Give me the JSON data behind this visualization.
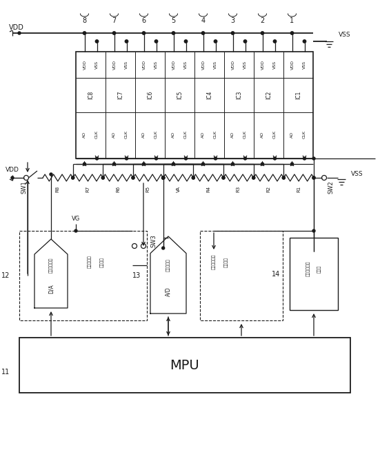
{
  "bg": "#ffffff",
  "lc": "#1a1a1a",
  "fig_w": 5.51,
  "fig_h": 6.85,
  "dpi": 100,
  "ic_labels": [
    "IC8",
    "IC7",
    "IC6",
    "IC5",
    "IC4",
    "IC3",
    "IC2",
    "IC1"
  ],
  "res_labels": [
    "R8",
    "R7",
    "R6",
    "R5",
    "VA",
    "R4",
    "R3",
    "R2",
    "R1"
  ],
  "mpu": "MPU",
  "vdd": "VDD",
  "vss": "VSS",
  "vg": "VG",
  "sw1": "SW1",
  "sw2": "SW2",
  "sw3": "SW3",
  "n11": "11",
  "n12": "12",
  "n13": "13",
  "n14": "14",
  "da_t1": "ゲイン設定用",
  "da_t2": "D/A",
  "gain_t1": "ゲイン設定",
  "gain_t2": "制御機器",
  "ad_t1": "信号計測用",
  "ad_t2": "A/D",
  "addr_t1": "アドレス設定",
  "addr_t2": "制御機器",
  "clk_t1": "多逓クロック",
  "clk_t2": "発生器",
  "num_labels": [
    "8",
    "7",
    "6",
    "5",
    "4",
    "3",
    "2",
    "1"
  ]
}
